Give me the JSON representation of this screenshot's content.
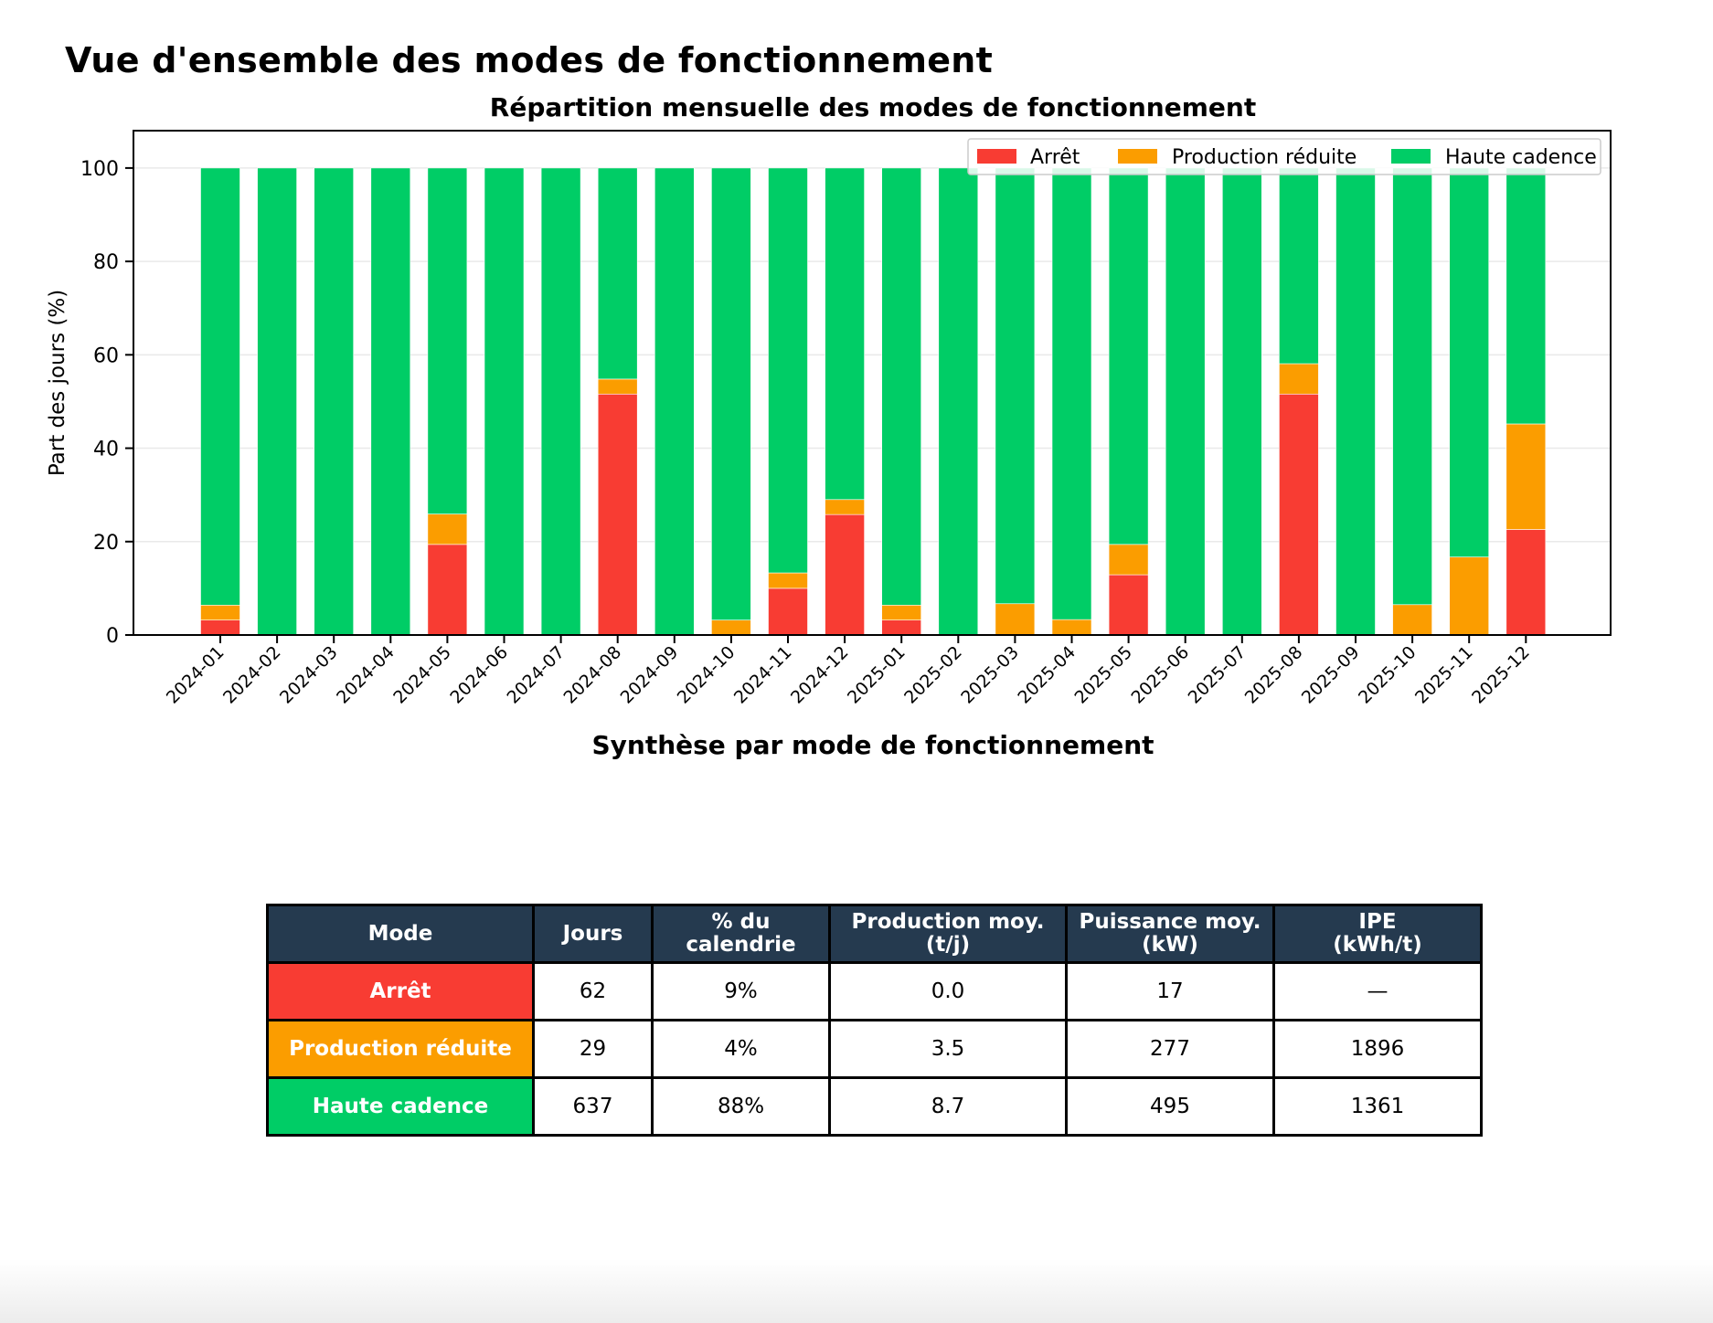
{
  "page": {
    "title": "Vue d'ensemble des modes de fonctionnement",
    "table_title": "Synthèse par mode de fonctionnement"
  },
  "colors": {
    "arret": "#f83c33",
    "reduite": "#fb9d00",
    "haute": "#00cd66",
    "header_bg": "#253a4f"
  },
  "chart_data": {
    "type": "bar",
    "stacked": true,
    "title": "Répartition mensuelle des modes de fonctionnement",
    "xlabel": "",
    "ylabel": "Part des jours (%)",
    "ylim": [
      0,
      108
    ],
    "yticks": [
      0,
      20,
      40,
      60,
      80,
      100
    ],
    "grid": "horizontal",
    "legend_position": "top-right",
    "categories": [
      "2024-01",
      "2024-02",
      "2024-03",
      "2024-04",
      "2024-05",
      "2024-06",
      "2024-07",
      "2024-08",
      "2024-09",
      "2024-10",
      "2024-11",
      "2024-12",
      "2025-01",
      "2025-02",
      "2025-03",
      "2025-04",
      "2025-05",
      "2025-06",
      "2025-07",
      "2025-08",
      "2025-09",
      "2025-10",
      "2025-11",
      "2025-12"
    ],
    "series": [
      {
        "name": "Arrêt",
        "color": "#f83c33",
        "values": [
          3.2,
          0,
          0,
          0,
          19.4,
          0,
          0,
          51.6,
          0,
          0,
          10,
          25.8,
          3.2,
          0,
          0,
          0,
          12.9,
          0,
          0,
          51.6,
          0,
          0,
          0,
          22.6
        ]
      },
      {
        "name": "Production réduite",
        "color": "#fb9d00",
        "values": [
          3.2,
          0,
          0,
          0,
          6.5,
          0,
          0,
          3.2,
          0,
          3.2,
          3.3,
          3.2,
          3.2,
          0,
          6.7,
          3.3,
          6.5,
          0,
          0,
          6.5,
          0,
          6.5,
          16.7,
          22.6
        ]
      },
      {
        "name": "Haute cadence",
        "color": "#00cd66",
        "values": [
          93.6,
          100,
          100,
          100,
          74.1,
          100,
          100,
          45.2,
          100,
          96.8,
          86.7,
          71,
          93.6,
          100,
          93.3,
          96.7,
          80.6,
          100,
          100,
          41.9,
          100,
          93.5,
          83.3,
          54.8
        ]
      }
    ]
  },
  "table": {
    "headers": [
      "Mode",
      "Jours",
      "% du calendrie",
      "Production moy.\n(t/j)",
      "Puissance moy.\n(kW)",
      "IPE\n(kWh/t)"
    ],
    "rows": [
      {
        "mode": "Arrêt",
        "color": "#f83c33",
        "jours": "62",
        "pct": "9%",
        "production": "0.0",
        "puissance": "17",
        "ipe": "—"
      },
      {
        "mode": "Production réduite",
        "color": "#fb9d00",
        "jours": "29",
        "pct": "4%",
        "production": "3.5",
        "puissance": "277",
        "ipe": "1896"
      },
      {
        "mode": "Haute cadence",
        "color": "#00cd66",
        "jours": "637",
        "pct": "88%",
        "production": "8.7",
        "puissance": "495",
        "ipe": "1361"
      }
    ]
  }
}
